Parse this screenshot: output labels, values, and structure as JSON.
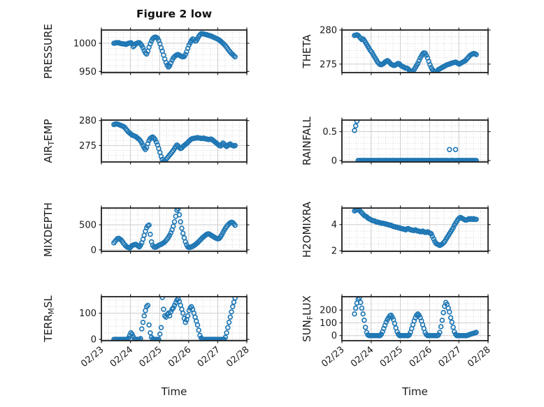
{
  "figure": {
    "title": "Figure 2 low",
    "xlabel": "Time",
    "background": "#ffffff",
    "marker_color": "#1f77b4",
    "frame_color": "#1f1f1f",
    "major_grid_color": "#cdcdcd",
    "minor_grid_color": "#c8c8c8",
    "text_color": "#1a1a1a"
  },
  "time_axis": {
    "xlim_days": [
      0,
      5
    ],
    "tick_labels": [
      "02/23",
      "02/24",
      "02/25",
      "02/26",
      "02/27",
      "02/28"
    ],
    "minor_step_days": 0.25,
    "t0_days": 0.43,
    "dt_days": 0.0416667
  },
  "chart_data": [
    {
      "type": "scatter",
      "id": "pressure",
      "ylabel_parts": [
        {
          "text": "PRESSURE",
          "sub": false
        }
      ],
      "ylim": [
        948,
        1023.5
      ],
      "yticks": [
        950,
        1000
      ],
      "ytick_labels": [
        "950",
        "1000"
      ],
      "yminor_step": 10,
      "values": [
        1000,
        1000.5,
        1001,
        1001,
        1001,
        1000,
        999.5,
        999,
        999,
        998.5,
        998,
        999,
        1000,
        1000.5,
        1001,
        999,
        994,
        996,
        999,
        1000,
        1001,
        1001,
        999,
        996,
        992,
        987,
        983,
        981,
        986,
        993,
        999,
        1004,
        1008,
        1010,
        1011,
        1010.5,
        1009,
        1005,
        999,
        992,
        986,
        979,
        972,
        966,
        961,
        958,
        960,
        965,
        970,
        974,
        976.5,
        978,
        979.5,
        980,
        979,
        977.5,
        976.5,
        976,
        976.5,
        980,
        985,
        991,
        997,
        1001,
        1005,
        1007.5,
        1007,
        1004,
        1004.5,
        1008,
        1012,
        1015,
        1017,
        1017,
        1016.5,
        1016,
        1015.5,
        1015,
        1014,
        1013.5,
        1013,
        1012,
        1011,
        1010,
        1009,
        1008,
        1007,
        1005.5,
        1004,
        1002,
        1000,
        998,
        995.5,
        993,
        990,
        987,
        984.5,
        982,
        980,
        978,
        976
      ]
    },
    {
      "type": "scatter",
      "id": "theta",
      "ylabel_parts": [
        {
          "text": "THETA",
          "sub": false
        }
      ],
      "ylim": [
        273.75,
        280
      ],
      "yticks": [
        275,
        280
      ],
      "ytick_labels": [
        "275",
        "280"
      ],
      "yminor_step": 1,
      "values": [
        279.2,
        279.25,
        279.3,
        279.2,
        279.0,
        278.8,
        278.6,
        278.7,
        278.5,
        278.2,
        277.9,
        277.6,
        277.3,
        277.0,
        276.8,
        276.5,
        276.2,
        275.9,
        275.6,
        275.3,
        275.1,
        274.95,
        274.9,
        275.0,
        275.1,
        275.3,
        275.4,
        275.5,
        275.4,
        275.2,
        275.0,
        274.9,
        274.8,
        274.8,
        274.9,
        275.0,
        275.1,
        275.0,
        274.8,
        274.7,
        274.6,
        274.5,
        274.4,
        274.4,
        274.3,
        274.1,
        273.95,
        273.9,
        274.0,
        274.2,
        274.5,
        274.8,
        275.1,
        275.5,
        275.9,
        276.2,
        276.5,
        276.65,
        276.6,
        276.3,
        275.9,
        275.4,
        274.9,
        274.5,
        274.2,
        274.0,
        273.9,
        273.85,
        274.0,
        274.2,
        274.3,
        274.4,
        274.5,
        274.6,
        274.7,
        274.8,
        274.9,
        274.95,
        275.0,
        275.1,
        275.15,
        275.2,
        275.25,
        275.3,
        275.2,
        275.1,
        275.0,
        275.1,
        275.2,
        275.3,
        275.4,
        275.5,
        275.7,
        275.9,
        276.1,
        276.3,
        276.4,
        276.5,
        276.55,
        276.5,
        276.4
      ]
    },
    {
      "type": "scatter",
      "id": "air-temp",
      "ylabel_parts": [
        {
          "text": "AIR",
          "sub": false
        },
        {
          "text": "T",
          "sub": true
        },
        {
          "text": "EMP",
          "sub": false
        }
      ],
      "ylim": [
        271.7,
        280.1
      ],
      "yticks": [
        275,
        280
      ],
      "ytick_labels": [
        "275",
        "280"
      ],
      "yminor_step": 1,
      "values": [
        279.2,
        279.3,
        279.35,
        279.3,
        279.2,
        279.1,
        279.0,
        278.9,
        278.8,
        278.6,
        278.3,
        278.0,
        277.7,
        277.5,
        277.3,
        277.1,
        277.0,
        276.9,
        276.8,
        276.6,
        276.4,
        276.2,
        275.9,
        275.5,
        275.0,
        274.5,
        274.2,
        274.6,
        275.4,
        276.0,
        276.4,
        276.6,
        276.7,
        276.5,
        276.2,
        275.7,
        275.1,
        274.4,
        273.6,
        272.8,
        272.2,
        271.8,
        271.9,
        272.2,
        272.5,
        272.8,
        273.1,
        273.4,
        273.7,
        274.0,
        274.4,
        274.8,
        275.1,
        274.9,
        274.6,
        274.4,
        274.5,
        274.8,
        275.0,
        275.2,
        275.4,
        275.6,
        275.9,
        276.1,
        276.3,
        276.4,
        276.4,
        276.5,
        276.5,
        276.6,
        276.5,
        276.5,
        276.4,
        276.4,
        276.5,
        276.4,
        276.3,
        276.3,
        276.2,
        276.2,
        276.3,
        276.2,
        276.0,
        275.8,
        275.6,
        275.4,
        275.2,
        275.0,
        274.9,
        275.2,
        275.5,
        275.3,
        275.0,
        274.8,
        275.0,
        275.2,
        275.3,
        275.1,
        275.0,
        274.9,
        275.0
      ]
    },
    {
      "type": "scatter",
      "id": "rainfall",
      "ylabel_parts": [
        {
          "text": "RAINFALL",
          "sub": false
        }
      ],
      "ylim": [
        -0.025,
        0.7
      ],
      "yticks": [
        0,
        0.5
      ],
      "ytick_labels": [
        "0",
        "0.5"
      ],
      "yminor_step": 0.1,
      "values": [
        0.52,
        0.6,
        0.68,
        0,
        0,
        0,
        0,
        0,
        0,
        0,
        0,
        0,
        0,
        0,
        0,
        0,
        0,
        0,
        0,
        0,
        0,
        0,
        0,
        0,
        0,
        0,
        0,
        0,
        0,
        0,
        0,
        0,
        0,
        0,
        0,
        0,
        0,
        0,
        0,
        0,
        0,
        0,
        0,
        0,
        0,
        0,
        0,
        0,
        0,
        0,
        0,
        0,
        0,
        0,
        0,
        0,
        0,
        0,
        0,
        0,
        0,
        0,
        0,
        0,
        0,
        0,
        0,
        0,
        0,
        0,
        0,
        0,
        0,
        0,
        0,
        0,
        0,
        0,
        0.19,
        0,
        0,
        0,
        0,
        0.19,
        0,
        0,
        0,
        0,
        0,
        0,
        0,
        0,
        0,
        0,
        0,
        0,
        0,
        0,
        0,
        0,
        0
      ]
    },
    {
      "type": "scatter",
      "id": "mixdepth",
      "ylabel_parts": [
        {
          "text": "MIXDEPTH",
          "sub": false
        }
      ],
      "ylim": [
        -30,
        835
      ],
      "yticks": [
        0,
        500
      ],
      "ytick_labels": [
        "0",
        "500"
      ],
      "yminor_step": 100,
      "values": [
        140,
        170,
        200,
        225,
        230,
        215,
        195,
        165,
        130,
        100,
        75,
        55,
        45,
        35,
        60,
        85,
        95,
        105,
        110,
        95,
        75,
        60,
        90,
        140,
        210,
        290,
        370,
        440,
        480,
        495,
        310,
        160,
        90,
        60,
        50,
        60,
        75,
        90,
        100,
        110,
        125,
        140,
        160,
        185,
        215,
        250,
        290,
        340,
        400,
        470,
        560,
        670,
        790,
        820,
        700,
        560,
        430,
        330,
        240,
        160,
        100,
        60,
        45,
        50,
        60,
        70,
        85,
        100,
        120,
        140,
        165,
        190,
        215,
        240,
        260,
        280,
        300,
        315,
        320,
        310,
        295,
        280,
        265,
        250,
        235,
        225,
        220,
        230,
        260,
        300,
        345,
        390,
        430,
        465,
        495,
        520,
        540,
        550,
        545,
        520,
        490
      ]
    },
    {
      "type": "scatter",
      "id": "h2omixra",
      "ylabel_parts": [
        {
          "text": "H2OMIXRA",
          "sub": false
        }
      ],
      "ylim": [
        1.95,
        5.27
      ],
      "yticks": [
        2,
        4
      ],
      "ytick_labels": [
        "2",
        "4"
      ],
      "yminor_step": 0.5,
      "values": [
        5.05,
        5.1,
        5.15,
        5.15,
        5.1,
        5.0,
        4.9,
        4.8,
        4.7,
        4.65,
        4.6,
        4.5,
        4.45,
        4.4,
        4.35,
        4.3,
        4.3,
        4.25,
        4.2,
        4.2,
        4.15,
        4.15,
        4.1,
        4.1,
        4.1,
        4.05,
        4.05,
        4.0,
        4.0,
        3.95,
        3.95,
        3.9,
        3.85,
        3.85,
        3.8,
        3.8,
        3.75,
        3.75,
        3.7,
        3.7,
        3.65,
        3.65,
        3.6,
        3.65,
        3.7,
        3.65,
        3.6,
        3.6,
        3.55,
        3.55,
        3.6,
        3.55,
        3.5,
        3.5,
        3.45,
        3.45,
        3.5,
        3.45,
        3.4,
        3.4,
        3.45,
        3.4,
        3.35,
        3.3,
        3.1,
        2.9,
        2.7,
        2.55,
        2.5,
        2.45,
        2.4,
        2.45,
        2.5,
        2.6,
        2.7,
        2.85,
        3.0,
        3.15,
        3.3,
        3.45,
        3.6,
        3.75,
        3.95,
        4.1,
        4.25,
        4.4,
        4.5,
        4.55,
        4.5,
        4.45,
        4.4,
        4.35,
        4.35,
        4.4,
        4.45,
        4.4,
        4.45,
        4.4,
        4.45,
        4.4,
        4.4
      ]
    },
    {
      "type": "scatter",
      "id": "terr-msl",
      "ylabel_parts": [
        {
          "text": "TERR",
          "sub": false
        },
        {
          "text": "M",
          "sub": true
        },
        {
          "text": "SL",
          "sub": false
        }
      ],
      "ylim": [
        -5,
        163
      ],
      "yticks": [
        0,
        100
      ],
      "ytick_labels": [
        "0",
        "100"
      ],
      "yminor_step": 25,
      "values": [
        0,
        0,
        0,
        0,
        0,
        0,
        0,
        0,
        0,
        0,
        0,
        0,
        5,
        15,
        25,
        20,
        10,
        2,
        0,
        0,
        0,
        0,
        3,
        40,
        65,
        90,
        110,
        125,
        130,
        55,
        25,
        8,
        2,
        0,
        0,
        0,
        0,
        0,
        20,
        45,
        160,
        115,
        90,
        85,
        95,
        100,
        90,
        105,
        115,
        120,
        130,
        140,
        150,
        155,
        145,
        130,
        115,
        100,
        80,
        65,
        75,
        90,
        110,
        120,
        125,
        115,
        100,
        85,
        70,
        55,
        35,
        15,
        5,
        0,
        0,
        0,
        0,
        0,
        0,
        0,
        0,
        0,
        0,
        0,
        0,
        0,
        0,
        0,
        0,
        0,
        0,
        0,
        8,
        25,
        45,
        65,
        85,
        105,
        125,
        142,
        158
      ]
    },
    {
      "type": "scatter",
      "id": "sun-flux",
      "ylabel_parts": [
        {
          "text": "SUN",
          "sub": false
        },
        {
          "text": "F",
          "sub": true
        },
        {
          "text": "LUX",
          "sub": false
        }
      ],
      "ylim": [
        -40,
        305
      ],
      "yticks": [
        0,
        100,
        200
      ],
      "ytick_labels": [
        "0",
        "100",
        "200"
      ],
      "yminor_step": 50,
      "values": [
        170,
        215,
        255,
        285,
        295,
        260,
        215,
        170,
        120,
        65,
        25,
        5,
        0,
        0,
        0,
        0,
        0,
        0,
        0,
        0,
        0,
        0,
        10,
        30,
        55,
        80,
        105,
        125,
        140,
        155,
        160,
        145,
        125,
        95,
        60,
        30,
        10,
        0,
        0,
        0,
        0,
        0,
        0,
        0,
        0,
        5,
        25,
        55,
        85,
        115,
        140,
        160,
        170,
        160,
        140,
        115,
        85,
        55,
        25,
        8,
        0,
        0,
        0,
        0,
        0,
        0,
        0,
        0,
        0,
        5,
        25,
        70,
        120,
        180,
        230,
        260,
        245,
        215,
        185,
        140,
        105,
        65,
        30,
        10,
        0,
        0,
        0,
        0,
        0,
        0,
        0,
        0,
        0,
        3,
        6,
        10,
        13,
        16,
        19,
        22,
        25
      ]
    }
  ]
}
